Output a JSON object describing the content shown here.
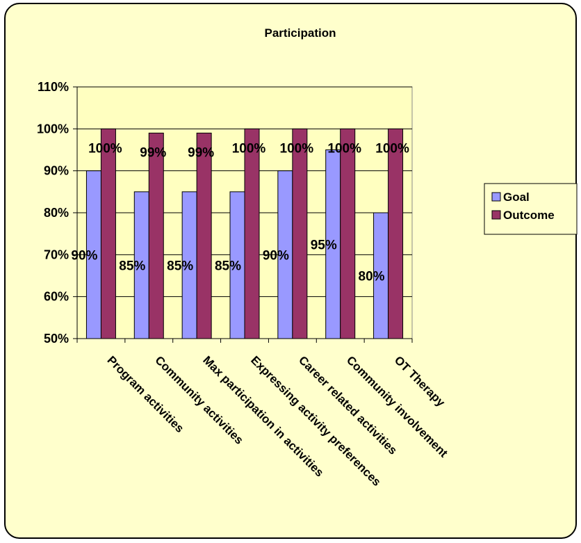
{
  "chart_data": {
    "type": "bar",
    "title": "Participation",
    "categories": [
      "Program activities",
      "Community activities",
      "Max participation in activities",
      "Expressing activity preferences",
      "Career related activities",
      "Community involvement",
      "OT Therapy"
    ],
    "series": [
      {
        "name": "Goal",
        "values": [
          90,
          85,
          85,
          85,
          90,
          95,
          80
        ],
        "labels": [
          "90%",
          "85%",
          "85%",
          "85%",
          "90%",
          "95%",
          "80%"
        ]
      },
      {
        "name": "Outcome",
        "values": [
          100,
          99,
          99,
          100,
          100,
          100,
          100
        ],
        "labels": [
          "100%",
          "99%",
          "99%",
          "100%",
          "100%",
          "100%",
          "100%"
        ]
      }
    ],
    "ylim": [
      50,
      110
    ],
    "yticks": [
      "50%",
      "60%",
      "70%",
      "80%",
      "90%",
      "100%",
      "110%"
    ],
    "grid": true,
    "legend_position": "right",
    "colors": {
      "goal": "#9999ff",
      "outcome": "#993366",
      "plot_bg": "#ffffc0",
      "chart_bg": "#ffffcc"
    }
  }
}
